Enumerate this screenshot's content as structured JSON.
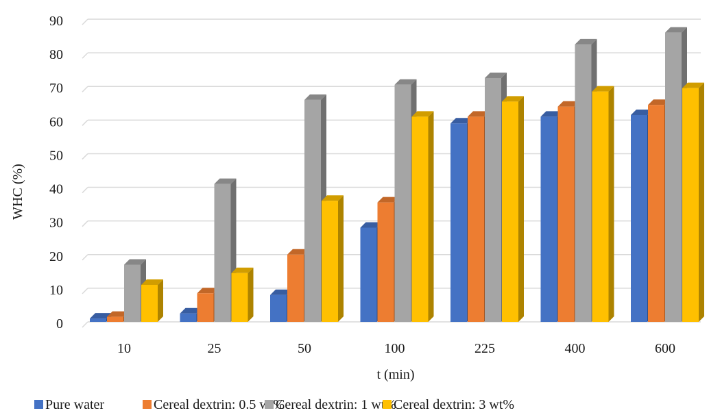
{
  "chart_data": {
    "type": "bar",
    "style": "3d-clustered",
    "title": "",
    "xlabel": "t (min)",
    "ylabel": "WHC (%)",
    "ylim": [
      0,
      90
    ],
    "yticks": [
      0,
      10,
      20,
      30,
      40,
      50,
      60,
      70,
      80,
      90
    ],
    "grid": true,
    "legend_position": "bottom",
    "categories": [
      "10",
      "25",
      "50",
      "100",
      "225",
      "400",
      "600"
    ],
    "series": [
      {
        "name": "Pure water",
        "color": "#4472c4",
        "values": [
          1,
          2.5,
          8,
          28,
          59,
          61,
          61.5
        ]
      },
      {
        "name": "Cereal dextrin: 0.5 wt%",
        "color": "#ed7d31",
        "values": [
          1.5,
          8.5,
          20,
          35.5,
          61,
          64,
          64.5
        ]
      },
      {
        "name": "Cereal dextrin: 1 wt%",
        "color": "#a5a5a5",
        "values": [
          17,
          41,
          66,
          70.5,
          72.5,
          82.5,
          86
        ]
      },
      {
        "name": "Cereal dextrin: 3 wt%",
        "color": "#ffc000",
        "values": [
          11,
          14.5,
          36,
          61,
          65.5,
          68.5,
          69.5
        ]
      }
    ]
  }
}
